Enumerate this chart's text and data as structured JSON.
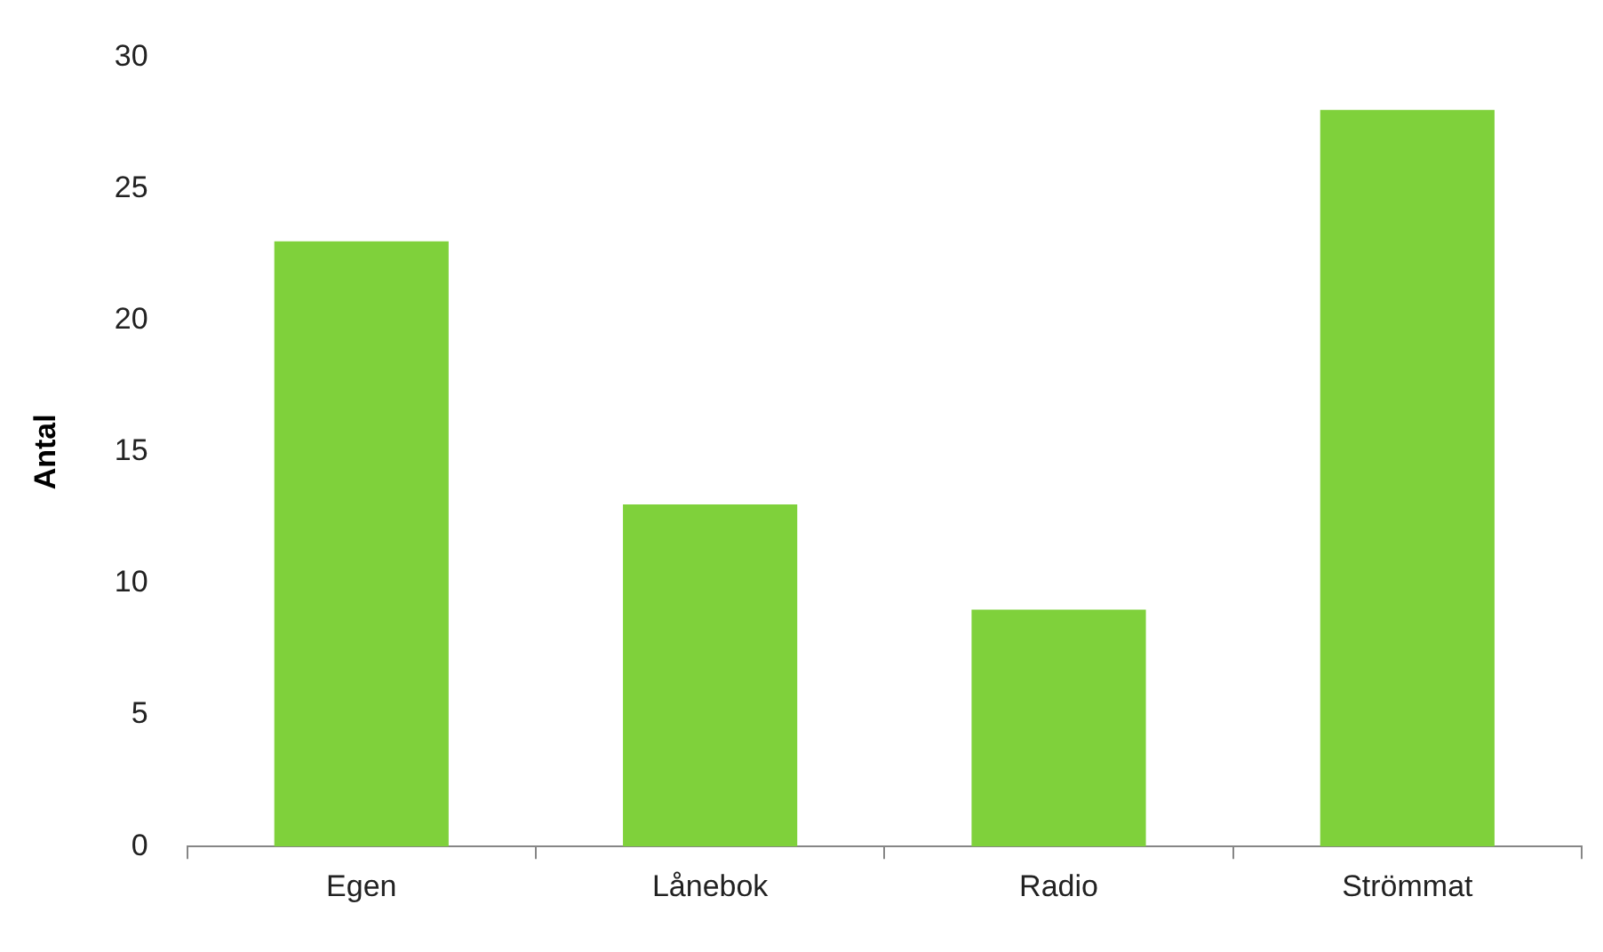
{
  "chart_data": {
    "type": "bar",
    "ylabel": "Antal",
    "categories": [
      "Egen",
      "Lånebok",
      "Radio",
      "Strömmat"
    ],
    "values": [
      23,
      13,
      9,
      28
    ],
    "color": "#7fd13b",
    "ylim": [
      0,
      30
    ],
    "yticks": [
      0,
      5,
      10,
      15,
      20,
      25,
      30
    ],
    "grid": false,
    "legend": false
  }
}
